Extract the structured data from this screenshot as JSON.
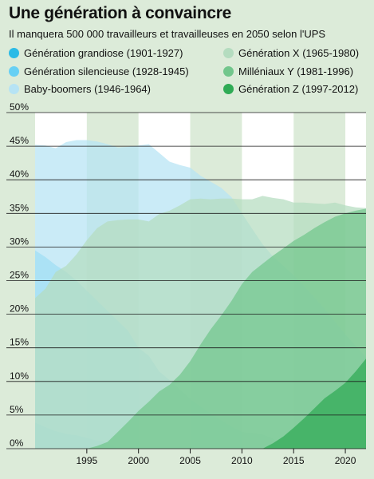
{
  "chart_data": {
    "type": "area",
    "title": "Une génération à convaincre",
    "subtitle": "Il manquera 500 000 travailleurs et travailleuses en 2050 selon l'UPS",
    "xlabel": "",
    "ylabel": "",
    "xlim": [
      1990,
      2022
    ],
    "ylim": [
      0,
      50
    ],
    "y_unit": "%",
    "x_ticks": [
      1995,
      2000,
      2005,
      2010,
      2015,
      2020
    ],
    "y_ticks": [
      0,
      5,
      10,
      15,
      20,
      25,
      30,
      35,
      40,
      45,
      50
    ],
    "grid": "horizontal lines",
    "legend_position": "top",
    "series": [
      {
        "name": "Génération grandiose (1901-1927)",
        "color": "#2bbbe6",
        "x": [
          1990,
          1991,
          1992,
          1993,
          1994,
          1995,
          1996,
          1997,
          1998
        ],
        "values": [
          3.9,
          3.2,
          2.6,
          2.2,
          2.0,
          1.6,
          1.2,
          0.9,
          0.0
        ]
      },
      {
        "name": "Génération silencieuse (1928-1945)",
        "color": "#67d0f4",
        "x": [
          1990,
          1991,
          1992,
          1993,
          1994,
          1995,
          1996,
          1997,
          1998,
          1999,
          2000,
          2001,
          2002,
          2003,
          2004,
          2005,
          2006,
          2007,
          2008,
          2009,
          2010,
          2011,
          2012,
          2013,
          2014
        ],
        "values": [
          29.5,
          28.5,
          27.3,
          26.3,
          25.0,
          23.5,
          22.0,
          20.5,
          19.0,
          17.5,
          15.0,
          13.8,
          11.5,
          10.2,
          8.8,
          7.4,
          6.3,
          5.2,
          4.2,
          3.3,
          2.5,
          2.3,
          2.1,
          1.5,
          0.0
        ]
      },
      {
        "name": "Baby-boomers (1946-1964)",
        "color": "#b6e3f4",
        "x": [
          1990,
          1991,
          1992,
          1993,
          1994,
          1995,
          1996,
          1997,
          1998,
          1999,
          2000,
          2001,
          2002,
          2003,
          2004,
          2005,
          2006,
          2007,
          2008,
          2009,
          2010,
          2011,
          2012,
          2013,
          2014,
          2015,
          2016,
          2017,
          2018,
          2019,
          2020,
          2021,
          2022
        ],
        "values": [
          45.2,
          45.1,
          44.7,
          45.6,
          45.9,
          45.9,
          45.7,
          45.3,
          44.8,
          44.9,
          45.1,
          45.3,
          44.0,
          42.7,
          42.2,
          41.8,
          40.6,
          39.7,
          38.8,
          37.4,
          35.0,
          32.7,
          30.4,
          28.6,
          27.2,
          25.8,
          24.2,
          22.5,
          20.8,
          18.9,
          17.0,
          15.3,
          13.6
        ]
      },
      {
        "name": "Génération X (1965-1980)",
        "color": "#b4dcbf",
        "x": [
          1990,
          1991,
          1992,
          1993,
          1994,
          1995,
          1996,
          1997,
          1998,
          1999,
          2000,
          2001,
          2002,
          2003,
          2004,
          2005,
          2006,
          2007,
          2008,
          2009,
          2010,
          2011,
          2012,
          2013,
          2014,
          2015,
          2016,
          2017,
          2018,
          2019,
          2020,
          2021,
          2022
        ],
        "values": [
          22.4,
          23.8,
          26.3,
          27.2,
          28.9,
          31.0,
          32.8,
          33.8,
          34.0,
          34.1,
          34.1,
          33.8,
          34.9,
          35.4,
          36.2,
          37.1,
          37.2,
          37.1,
          37.2,
          37.2,
          37.1,
          37.1,
          37.6,
          37.3,
          37.1,
          36.6,
          36.6,
          36.5,
          36.4,
          36.6,
          36.2,
          35.9,
          35.8
        ]
      },
      {
        "name": "Milléniaux Y (1981-1996)",
        "color": "#72c68c",
        "x": [
          1995,
          1996,
          1997,
          1998,
          1999,
          2000,
          2001,
          2002,
          2003,
          2004,
          2005,
          2006,
          2007,
          2008,
          2009,
          2010,
          2011,
          2012,
          2013,
          2014,
          2015,
          2016,
          2017,
          2018,
          2019,
          2020,
          2021,
          2022
        ],
        "values": [
          0.0,
          0.4,
          1.0,
          2.5,
          4.0,
          5.6,
          7.0,
          8.5,
          9.5,
          11.0,
          13.0,
          15.5,
          17.8,
          19.8,
          22.0,
          24.5,
          26.3,
          27.5,
          28.7,
          29.8,
          30.9,
          31.8,
          32.8,
          33.7,
          34.5,
          35.0,
          35.4,
          35.7
        ]
      },
      {
        "name": "Génération Z (1997-2012)",
        "color": "#2fab55",
        "x": [
          2011,
          2012,
          2013,
          2014,
          2015,
          2016,
          2017,
          2018,
          2019,
          2020,
          2021,
          2022
        ],
        "values": [
          0.0,
          0.0,
          0.8,
          1.8,
          3.1,
          4.5,
          6.0,
          7.5,
          8.6,
          9.8,
          11.5,
          13.4
        ]
      }
    ]
  }
}
